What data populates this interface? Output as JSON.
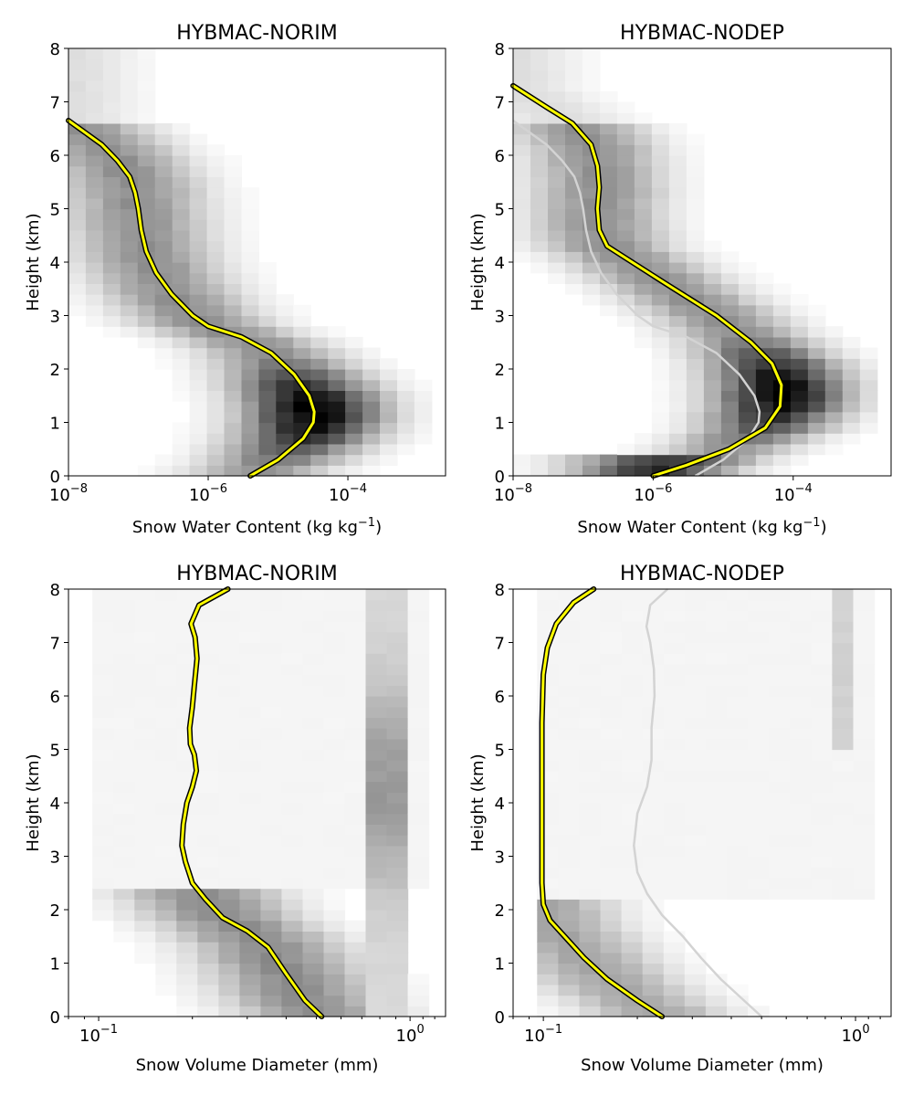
{
  "figure": {
    "background": "#ffffff"
  },
  "chart_data": [
    {
      "type": "heatmap",
      "title": "HYBMAC-NORIM",
      "xlabel": "Snow Water Content (kg kg⁻¹)",
      "ylabel": "Height (km)",
      "xscale": "log",
      "xlim": [
        1e-08,
        0.0025
      ],
      "ylim": [
        0,
        8
      ],
      "yticks": [
        0,
        1,
        2,
        3,
        4,
        5,
        6,
        7,
        8
      ],
      "ytick_labels": [
        "0",
        "1",
        "2",
        "3",
        "4",
        "5",
        "6",
        "7",
        "8"
      ],
      "xticks": [
        1e-08,
        1e-06,
        0.0001
      ],
      "xtick_labels": [
        {
          "base": "10",
          "exp": "−8"
        },
        {
          "base": "10",
          "exp": "−6"
        },
        {
          "base": "10",
          "exp": "−4"
        }
      ],
      "colormap": "greys",
      "grid": false,
      "series": [
        {
          "color": "#ffff00",
          "edge_color": "#000000",
          "points": [
            [
              4e-06,
              0.0
            ],
            [
              1e-05,
              0.3
            ],
            [
              2.3e-05,
              0.7
            ],
            [
              3.2e-05,
              1.0
            ],
            [
              3.3e-05,
              1.2
            ],
            [
              2.8e-05,
              1.5
            ],
            [
              1.7e-05,
              1.9
            ],
            [
              8e-06,
              2.3
            ],
            [
              3e-06,
              2.6
            ],
            [
              1e-06,
              2.8
            ],
            [
              6e-07,
              3.0
            ],
            [
              3e-07,
              3.4
            ],
            [
              1.8e-07,
              3.8
            ],
            [
              1.3e-07,
              4.2
            ],
            [
              1.1e-07,
              4.6
            ],
            [
              1e-07,
              5.0
            ],
            [
              9e-08,
              5.3
            ],
            [
              7.5e-08,
              5.6
            ],
            [
              5e-08,
              5.9
            ],
            [
              3e-08,
              6.2
            ],
            [
              1e-08,
              6.65
            ]
          ]
        }
      ]
    },
    {
      "type": "heatmap",
      "title": "HYBMAC-NODEP",
      "xlabel": "Snow Water Content (kg kg⁻¹)",
      "ylabel": "Height (km)",
      "xscale": "log",
      "xlim": [
        1e-08,
        0.0025
      ],
      "ylim": [
        0,
        8
      ],
      "yticks": [
        0,
        1,
        2,
        3,
        4,
        5,
        6,
        7,
        8
      ],
      "ytick_labels": [
        "0",
        "1",
        "2",
        "3",
        "4",
        "5",
        "6",
        "7",
        "8"
      ],
      "xticks": [
        1e-08,
        1e-06,
        0.0001
      ],
      "xtick_labels": [
        {
          "base": "10",
          "exp": "−8"
        },
        {
          "base": "10",
          "exp": "−6"
        },
        {
          "base": "10",
          "exp": "−4"
        }
      ],
      "colormap": "greys",
      "grid": false,
      "series": [
        {
          "color": "#ffff00",
          "edge_color": "#000000",
          "points": [
            [
              1e-06,
              0.0
            ],
            [
              3e-06,
              0.2
            ],
            [
              1.2e-05,
              0.5
            ],
            [
              4e-05,
              0.9
            ],
            [
              6.5e-05,
              1.3
            ],
            [
              6.8e-05,
              1.7
            ],
            [
              5e-05,
              2.1
            ],
            [
              2.5e-05,
              2.5
            ],
            [
              8e-06,
              3.0
            ],
            [
              1.5e-06,
              3.6
            ],
            [
              5e-07,
              4.0
            ],
            [
              2.2e-07,
              4.3
            ],
            [
              1.7e-07,
              4.6
            ],
            [
              1.6e-07,
              5.0
            ],
            [
              1.7e-07,
              5.4
            ],
            [
              1.6e-07,
              5.8
            ],
            [
              1.3e-07,
              6.2
            ],
            [
              7e-08,
              6.6
            ],
            [
              3e-08,
              6.9
            ],
            [
              1e-08,
              7.3
            ]
          ]
        },
        {
          "color": "#d3d3d3",
          "points": [
            [
              4e-06,
              0.0
            ],
            [
              1e-05,
              0.3
            ],
            [
              2.3e-05,
              0.7
            ],
            [
              3.2e-05,
              1.0
            ],
            [
              3.3e-05,
              1.2
            ],
            [
              2.8e-05,
              1.5
            ],
            [
              1.7e-05,
              1.9
            ],
            [
              8e-06,
              2.3
            ],
            [
              3e-06,
              2.6
            ],
            [
              1e-06,
              2.8
            ],
            [
              6e-07,
              3.0
            ],
            [
              3e-07,
              3.4
            ],
            [
              1.8e-07,
              3.8
            ],
            [
              1.3e-07,
              4.2
            ],
            [
              1.1e-07,
              4.6
            ],
            [
              1e-07,
              5.0
            ],
            [
              9e-08,
              5.3
            ],
            [
              7.5e-08,
              5.6
            ],
            [
              5e-08,
              5.9
            ],
            [
              3e-08,
              6.2
            ],
            [
              1e-08,
              6.65
            ]
          ]
        }
      ]
    },
    {
      "type": "heatmap",
      "title": "HYBMAC-NORIM",
      "xlabel": "Snow Volume Diameter (mm)",
      "ylabel": "Height (km)",
      "xscale": "log",
      "xlim": [
        0.08,
        1.3
      ],
      "ylim": [
        0,
        8
      ],
      "yticks": [
        0,
        1,
        2,
        3,
        4,
        5,
        6,
        7,
        8
      ],
      "ytick_labels": [
        "0",
        "1",
        "2",
        "3",
        "4",
        "5",
        "6",
        "7",
        "8"
      ],
      "xticks": [
        0.1,
        1
      ],
      "xtick_labels": [
        {
          "base": "10",
          "exp": "−1"
        },
        {
          "base": "10",
          "exp": "0"
        }
      ],
      "colormap": "greys",
      "grid": false,
      "series": [
        {
          "color": "#ffff00",
          "edge_color": "#000000",
          "points": [
            [
              0.52,
              0.0
            ],
            [
              0.46,
              0.3
            ],
            [
              0.4,
              0.8
            ],
            [
              0.35,
              1.3
            ],
            [
              0.3,
              1.6
            ],
            [
              0.25,
              1.85
            ],
            [
              0.22,
              2.2
            ],
            [
              0.2,
              2.5
            ],
            [
              0.19,
              2.9
            ],
            [
              0.185,
              3.2
            ],
            [
              0.187,
              3.6
            ],
            [
              0.192,
              4.0
            ],
            [
              0.2,
              4.3
            ],
            [
              0.206,
              4.6
            ],
            [
              0.203,
              4.9
            ],
            [
              0.197,
              5.1
            ],
            [
              0.196,
              5.4
            ],
            [
              0.2,
              5.8
            ],
            [
              0.203,
              6.2
            ],
            [
              0.207,
              6.7
            ],
            [
              0.204,
              7.1
            ],
            [
              0.198,
              7.35
            ],
            [
              0.21,
              7.7
            ],
            [
              0.26,
              8.0
            ]
          ]
        }
      ]
    },
    {
      "type": "heatmap",
      "title": "HYBMAC-NODEP",
      "xlabel": "Snow Volume Diameter (mm)",
      "ylabel": "Height (km)",
      "xscale": "log",
      "xlim": [
        0.08,
        1.3
      ],
      "ylim": [
        0,
        8
      ],
      "yticks": [
        0,
        1,
        2,
        3,
        4,
        5,
        6,
        7,
        8
      ],
      "ytick_labels": [
        "0",
        "1",
        "2",
        "3",
        "4",
        "5",
        "6",
        "7",
        "8"
      ],
      "xticks": [
        0.1,
        1
      ],
      "xtick_labels": [
        {
          "base": "10",
          "exp": "−1"
        },
        {
          "base": "10",
          "exp": "0"
        }
      ],
      "colormap": "greys",
      "grid": false,
      "series": [
        {
          "color": "#ffff00",
          "edge_color": "#000000",
          "points": [
            [
              0.24,
              0.0
            ],
            [
              0.2,
              0.3
            ],
            [
              0.16,
              0.7
            ],
            [
              0.135,
              1.1
            ],
            [
              0.117,
              1.5
            ],
            [
              0.105,
              1.8
            ],
            [
              0.1,
              2.1
            ],
            [
              0.099,
              2.5
            ],
            [
              0.099,
              3.5
            ],
            [
              0.099,
              4.5
            ],
            [
              0.099,
              5.5
            ],
            [
              0.1,
              6.4
            ],
            [
              0.103,
              6.9
            ],
            [
              0.11,
              7.35
            ],
            [
              0.125,
              7.75
            ],
            [
              0.145,
              8.0
            ]
          ]
        },
        {
          "color": "#d3d3d3",
          "points": [
            [
              0.5,
              0.0
            ],
            [
              0.43,
              0.35
            ],
            [
              0.37,
              0.7
            ],
            [
              0.32,
              1.1
            ],
            [
              0.28,
              1.5
            ],
            [
              0.24,
              1.9
            ],
            [
              0.215,
              2.3
            ],
            [
              0.2,
              2.7
            ],
            [
              0.195,
              3.2
            ],
            [
              0.2,
              3.8
            ],
            [
              0.215,
              4.3
            ],
            [
              0.222,
              4.8
            ],
            [
              0.222,
              5.4
            ],
            [
              0.227,
              6.0
            ],
            [
              0.226,
              6.5
            ],
            [
              0.22,
              7.0
            ],
            [
              0.214,
              7.3
            ],
            [
              0.22,
              7.7
            ],
            [
              0.25,
              8.0
            ]
          ]
        }
      ]
    }
  ]
}
